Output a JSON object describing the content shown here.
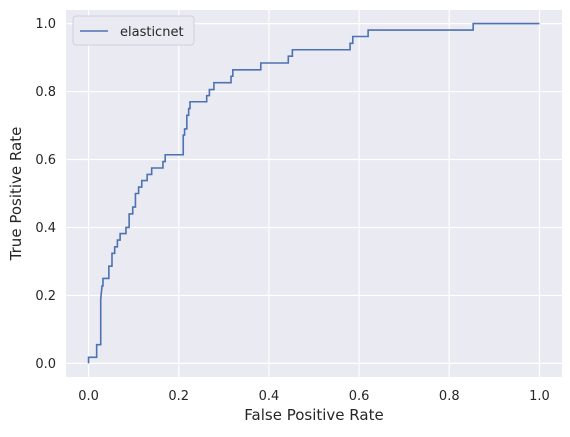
{
  "chart_data": {
    "type": "line",
    "title": "",
    "xlabel": "False Positive Rate",
    "ylabel": "True Positive Rate",
    "xlim": [
      -0.05,
      1.05
    ],
    "ylim": [
      -0.04,
      1.04
    ],
    "xticks": [
      0.0,
      0.2,
      0.4,
      0.6,
      0.8,
      1.0
    ],
    "yticks": [
      0.0,
      0.2,
      0.4,
      0.6,
      0.8,
      1.0
    ],
    "xtick_labels": [
      "0.0",
      "0.2",
      "0.4",
      "0.6",
      "0.8",
      "1.0"
    ],
    "ytick_labels": [
      "0.0",
      "0.2",
      "0.4",
      "0.6",
      "0.8",
      "1.0"
    ],
    "grid": true,
    "legend": "upper-left",
    "style": "seaborn-darkgrid",
    "colors": {
      "background": "#eaeaf2",
      "grid": "#ffffff",
      "line": "#4c72b0"
    },
    "series": [
      {
        "name": "elasticnet",
        "x": [
          0.0,
          0.0,
          0.005,
          0.018,
          0.018,
          0.018,
          0.027,
          0.027,
          0.027,
          0.027,
          0.027,
          0.027,
          0.03,
          0.032,
          0.032,
          0.045,
          0.045,
          0.045,
          0.052,
          0.052,
          0.052,
          0.058,
          0.058,
          0.064,
          0.064,
          0.07,
          0.07,
          0.083,
          0.083,
          0.09,
          0.09,
          0.098,
          0.098,
          0.104,
          0.104,
          0.111,
          0.111,
          0.118,
          0.118,
          0.13,
          0.13,
          0.14,
          0.14,
          0.165,
          0.165,
          0.17,
          0.17,
          0.21,
          0.21,
          0.213,
          0.213,
          0.218,
          0.218,
          0.222,
          0.222,
          0.225,
          0.225,
          0.262,
          0.262,
          0.268,
          0.268,
          0.278,
          0.278,
          0.316,
          0.316,
          0.32,
          0.32,
          0.382,
          0.382,
          0.443,
          0.443,
          0.452,
          0.452,
          0.58,
          0.58,
          0.586,
          0.586,
          0.62,
          0.62,
          0.853,
          0.853,
          1.0
        ],
        "y": [
          0.0,
          0.018,
          0.018,
          0.018,
          0.037,
          0.055,
          0.055,
          0.075,
          0.094,
          0.13,
          0.15,
          0.19,
          0.228,
          0.228,
          0.25,
          0.25,
          0.27,
          0.286,
          0.286,
          0.305,
          0.324,
          0.324,
          0.343,
          0.343,
          0.363,
          0.363,
          0.382,
          0.382,
          0.4,
          0.4,
          0.44,
          0.44,
          0.46,
          0.46,
          0.5,
          0.5,
          0.519,
          0.519,
          0.538,
          0.538,
          0.556,
          0.556,
          0.575,
          0.575,
          0.594,
          0.594,
          0.614,
          0.614,
          0.672,
          0.672,
          0.69,
          0.69,
          0.73,
          0.73,
          0.75,
          0.75,
          0.77,
          0.77,
          0.788,
          0.788,
          0.806,
          0.806,
          0.826,
          0.826,
          0.845,
          0.845,
          0.864,
          0.864,
          0.884,
          0.884,
          0.904,
          0.904,
          0.923,
          0.923,
          0.942,
          0.942,
          0.962,
          0.962,
          0.981,
          0.981,
          1.0,
          1.0
        ]
      }
    ]
  }
}
